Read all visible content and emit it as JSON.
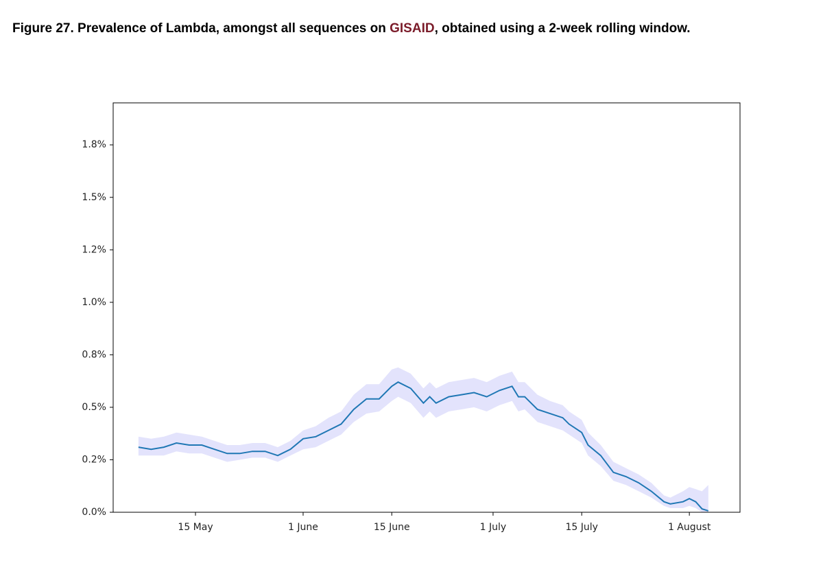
{
  "chart_data": {
    "type": "line",
    "title_parts": [
      "Figure 27. Prevalence of Lambda, amongst all sequences on ",
      "GISAID",
      ", obtained using a 2-week rolling window."
    ],
    "x": [
      "05-06",
      "05-08",
      "05-10",
      "05-12",
      "05-14",
      "05-16",
      "05-18",
      "05-20",
      "05-22",
      "05-24",
      "05-26",
      "05-28",
      "05-30",
      "06-01",
      "06-03",
      "06-05",
      "06-07",
      "06-09",
      "06-11",
      "06-13",
      "06-15",
      "06-16",
      "06-18",
      "06-20",
      "06-21",
      "06-22",
      "06-24",
      "06-26",
      "06-28",
      "06-30",
      "07-02",
      "07-04",
      "07-05",
      "07-06",
      "07-08",
      "07-10",
      "07-12",
      "07-13",
      "07-15",
      "07-16",
      "07-18",
      "07-20",
      "07-22",
      "07-24",
      "07-26",
      "07-28",
      "07-29",
      "07-31",
      "08-01",
      "08-02",
      "08-03",
      "08-04"
    ],
    "values": [
      0.31,
      0.3,
      0.31,
      0.33,
      0.32,
      0.32,
      0.3,
      0.28,
      0.28,
      0.29,
      0.29,
      0.27,
      0.3,
      0.35,
      0.36,
      0.39,
      0.42,
      0.49,
      0.54,
      0.54,
      0.6,
      0.62,
      0.59,
      0.52,
      0.55,
      0.52,
      0.55,
      0.56,
      0.57,
      0.55,
      0.58,
      0.6,
      0.55,
      0.55,
      0.49,
      0.47,
      0.45,
      0.42,
      0.38,
      0.32,
      0.27,
      0.19,
      0.17,
      0.14,
      0.1,
      0.05,
      0.04,
      0.05,
      0.065,
      0.05,
      0.016,
      0.007
    ],
    "lower": [
      0.27,
      0.27,
      0.27,
      0.29,
      0.28,
      0.28,
      0.26,
      0.24,
      0.25,
      0.26,
      0.26,
      0.24,
      0.27,
      0.3,
      0.31,
      0.34,
      0.37,
      0.43,
      0.47,
      0.48,
      0.53,
      0.55,
      0.52,
      0.45,
      0.48,
      0.45,
      0.48,
      0.49,
      0.5,
      0.48,
      0.51,
      0.53,
      0.48,
      0.49,
      0.43,
      0.41,
      0.39,
      0.37,
      0.33,
      0.27,
      0.22,
      0.15,
      0.13,
      0.1,
      0.07,
      0.03,
      0.02,
      0.02,
      0.03,
      0.02,
      0.0,
      0.0
    ],
    "upper": [
      0.36,
      0.35,
      0.36,
      0.38,
      0.37,
      0.36,
      0.34,
      0.32,
      0.32,
      0.33,
      0.33,
      0.31,
      0.34,
      0.39,
      0.41,
      0.45,
      0.48,
      0.56,
      0.61,
      0.61,
      0.68,
      0.69,
      0.66,
      0.59,
      0.62,
      0.59,
      0.62,
      0.63,
      0.64,
      0.62,
      0.65,
      0.67,
      0.62,
      0.62,
      0.56,
      0.53,
      0.51,
      0.48,
      0.44,
      0.38,
      0.32,
      0.24,
      0.21,
      0.18,
      0.14,
      0.08,
      0.07,
      0.1,
      0.12,
      0.11,
      0.1,
      0.13
    ],
    "color": "#1f77b4",
    "band_color": "#e3e3fc",
    "xlim": [
      "05-02",
      "08-09"
    ],
    "xticks": [
      {
        "value": "05-15",
        "label": "15 May"
      },
      {
        "value": "06-01",
        "label": "1 June"
      },
      {
        "value": "06-15",
        "label": "15 June"
      },
      {
        "value": "07-01",
        "label": "1 July"
      },
      {
        "value": "07-15",
        "label": "15 July"
      },
      {
        "value": "08-01",
        "label": "1 August"
      }
    ],
    "ylim": [
      0,
      1.95
    ],
    "yticks": [
      {
        "value": 0,
        "label": "0.0%"
      },
      {
        "value": 0.25,
        "label": "0.2%"
      },
      {
        "value": 0.5,
        "label": "0.5%"
      },
      {
        "value": 0.75,
        "label": "0.8%"
      },
      {
        "value": 1.0,
        "label": "1.0%"
      },
      {
        "value": 1.25,
        "label": "1.2%"
      },
      {
        "value": 1.5,
        "label": "1.5%"
      },
      {
        "value": 1.75,
        "label": "1.8%"
      }
    ]
  }
}
